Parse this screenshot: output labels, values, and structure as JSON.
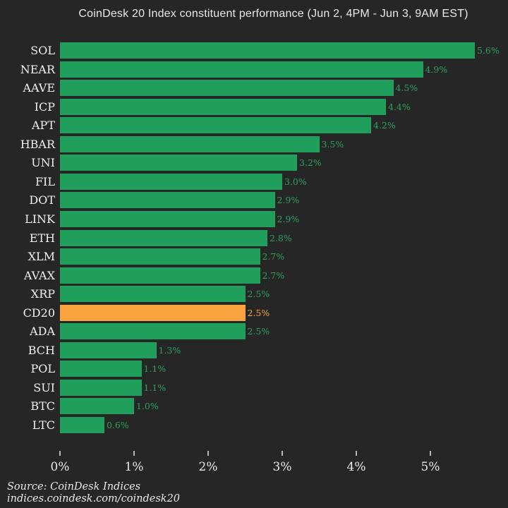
{
  "title": "CoinDesk 20 Index constituent performance (Jun 2, 4PM - Jun 3, 9AM EST)",
  "footer": {
    "source_line": "Source: CoinDesk Indices",
    "url_line": "indices.coindesk.com/coindesk20"
  },
  "colors": {
    "background": "#262626",
    "bar_green": "#1f9e5c",
    "bar_orange": "#f9a43f",
    "value_text_green": "#2aa05f",
    "value_text_orange": "#f9a43f",
    "category_text": "#f2f2f2",
    "axis_text": "#e9e9e9"
  },
  "chart_data": {
    "type": "bar",
    "orientation": "horizontal",
    "title": "CoinDesk 20 Index constituent performance (Jun 2, 4PM - Jun 3, 9AM EST)",
    "categories": [
      "SOL",
      "NEAR",
      "AAVE",
      "ICP",
      "APT",
      "HBAR",
      "UNI",
      "FIL",
      "DOT",
      "LINK",
      "ETH",
      "XLM",
      "AVAX",
      "XRP",
      "CD20",
      "ADA",
      "BCH",
      "POL",
      "SUI",
      "BTC",
      "LTC"
    ],
    "values": [
      5.6,
      4.9,
      4.5,
      4.4,
      4.2,
      3.5,
      3.2,
      3.0,
      2.9,
      2.9,
      2.8,
      2.7,
      2.7,
      2.5,
      2.5,
      2.5,
      1.3,
      1.1,
      1.1,
      1.0,
      0.6
    ],
    "value_labels": [
      "5.6%",
      "4.9%",
      "4.5%",
      "4.4%",
      "4.2%",
      "3.5%",
      "3.2%",
      "3.0%",
      "2.9%",
      "2.9%",
      "2.8%",
      "2.7%",
      "2.7%",
      "2.5%",
      "2.5%",
      "2.5%",
      "1.3%",
      "1.1%",
      "1.1%",
      "1.0%",
      "0.6%"
    ],
    "highlight_category": "CD20",
    "xlabel": "",
    "ylabel": "",
    "xlim": [
      0,
      5.85
    ],
    "x_tick_values": [
      0,
      1,
      2,
      3,
      4,
      5
    ],
    "x_tick_labels": [
      "0%",
      "1%",
      "2%",
      "3%",
      "4%",
      "5%"
    ],
    "grid": false,
    "legend": "none",
    "data_label_position": "outside-end"
  }
}
